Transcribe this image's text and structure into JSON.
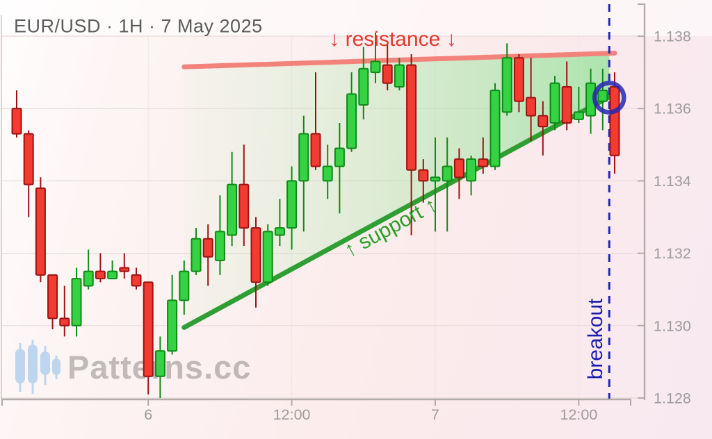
{
  "header": {
    "title": "EUR/USD · 1H · 7 May 2025"
  },
  "watermark": {
    "text": "Patterns.cc"
  },
  "annotations": {
    "resistance_label": "↓ resistance ↓",
    "support_label": "↑ support ↑",
    "breakout_label": "breakout"
  },
  "colors": {
    "up_fill": "#35d244",
    "up_stroke": "#0e8a16",
    "down_fill": "#f23b31",
    "down_stroke": "#9e1212",
    "support": "#2f9e33",
    "resistance": "#f3837a",
    "breakout": "#2626b2",
    "wedge_start": "rgba(190,240,190,0.10)",
    "wedge_end": "rgba(125,224,135,0.62)",
    "grid": "#e8d9d9",
    "axis": "#b3aaaa",
    "axis_text": "#9f9b9b",
    "logo": "#b7d2ef"
  },
  "chart_data": {
    "type": "candlestick",
    "symbol": "EUR/USD",
    "timeframe": "1H",
    "date": "7 May 2025",
    "y_axis": {
      "labels": [
        "1.138",
        "1.136",
        "1.134",
        "1.132",
        "1.130",
        "1.128"
      ],
      "min": 1.128,
      "max": 1.138,
      "grid": true,
      "side": "right"
    },
    "x_axis": {
      "ticks": [
        {
          "label": "6",
          "index": 11
        },
        {
          "label": "12:00",
          "index": 23
        },
        {
          "label": "7",
          "index": 35
        },
        {
          "label": "12:00",
          "index": 47
        }
      ]
    },
    "candles": [
      {
        "o": 1.136,
        "h": 1.1365,
        "l": 1.1352,
        "c": 1.1353
      },
      {
        "o": 1.1353,
        "h": 1.1354,
        "l": 1.133,
        "c": 1.1339
      },
      {
        "o": 1.1338,
        "h": 1.1341,
        "l": 1.1312,
        "c": 1.1314
      },
      {
        "o": 1.1314,
        "h": 1.1314,
        "l": 1.1299,
        "c": 1.1302
      },
      {
        "o": 1.1302,
        "h": 1.1311,
        "l": 1.1297,
        "c": 1.13
      },
      {
        "o": 1.13,
        "h": 1.1316,
        "l": 1.1297,
        "c": 1.1313
      },
      {
        "o": 1.1311,
        "h": 1.1321,
        "l": 1.131,
        "c": 1.1315
      },
      {
        "o": 1.1315,
        "h": 1.132,
        "l": 1.1312,
        "c": 1.1313
      },
      {
        "o": 1.1313,
        "h": 1.1318,
        "l": 1.1313,
        "c": 1.1315
      },
      {
        "o": 1.1316,
        "h": 1.132,
        "l": 1.1313,
        "c": 1.1315
      },
      {
        "o": 1.1314,
        "h": 1.1316,
        "l": 1.131,
        "c": 1.1311
      },
      {
        "o": 1.1312,
        "h": 1.1312,
        "l": 1.1281,
        "c": 1.1286
      },
      {
        "o": 1.1286,
        "h": 1.1297,
        "l": 1.128,
        "c": 1.1293
      },
      {
        "o": 1.1293,
        "h": 1.1314,
        "l": 1.1292,
        "c": 1.1307
      },
      {
        "o": 1.1307,
        "h": 1.1318,
        "l": 1.1303,
        "c": 1.1315
      },
      {
        "o": 1.1315,
        "h": 1.1327,
        "l": 1.1314,
        "c": 1.1324
      },
      {
        "o": 1.1324,
        "h": 1.1328,
        "l": 1.1311,
        "c": 1.1319
      },
      {
        "o": 1.1318,
        "h": 1.1336,
        "l": 1.1314,
        "c": 1.1326
      },
      {
        "o": 1.1325,
        "h": 1.1348,
        "l": 1.1322,
        "c": 1.1339
      },
      {
        "o": 1.1339,
        "h": 1.135,
        "l": 1.1322,
        "c": 1.1327
      },
      {
        "o": 1.1327,
        "h": 1.133,
        "l": 1.1305,
        "c": 1.1312
      },
      {
        "o": 1.1312,
        "h": 1.1328,
        "l": 1.1311,
        "c": 1.1326
      },
      {
        "o": 1.1325,
        "h": 1.1335,
        "l": 1.1322,
        "c": 1.1327
      },
      {
        "o": 1.1327,
        "h": 1.1344,
        "l": 1.1321,
        "c": 1.134
      },
      {
        "o": 1.134,
        "h": 1.1358,
        "l": 1.1326,
        "c": 1.1353
      },
      {
        "o": 1.1353,
        "h": 1.137,
        "l": 1.1343,
        "c": 1.1344
      },
      {
        "o": 1.134,
        "h": 1.135,
        "l": 1.1335,
        "c": 1.1344
      },
      {
        "o": 1.1344,
        "h": 1.1356,
        "l": 1.1331,
        "c": 1.1349
      },
      {
        "o": 1.1349,
        "h": 1.137,
        "l": 1.1348,
        "c": 1.1364
      },
      {
        "o": 1.1361,
        "h": 1.1377,
        "l": 1.1357,
        "c": 1.1371
      },
      {
        "o": 1.137,
        "h": 1.1381,
        "l": 1.1367,
        "c": 1.1373
      },
      {
        "o": 1.1372,
        "h": 1.1378,
        "l": 1.1365,
        "c": 1.1367
      },
      {
        "o": 1.1366,
        "h": 1.1374,
        "l": 1.1365,
        "c": 1.1372
      },
      {
        "o": 1.1372,
        "h": 1.1375,
        "l": 1.1325,
        "c": 1.1343
      },
      {
        "o": 1.1343,
        "h": 1.1346,
        "l": 1.1334,
        "c": 1.134
      },
      {
        "o": 1.134,
        "h": 1.1352,
        "l": 1.1326,
        "c": 1.1341
      },
      {
        "o": 1.134,
        "h": 1.1352,
        "l": 1.1326,
        "c": 1.1344
      },
      {
        "o": 1.1346,
        "h": 1.1349,
        "l": 1.1335,
        "c": 1.1341
      },
      {
        "o": 1.134,
        "h": 1.1347,
        "l": 1.1336,
        "c": 1.1346
      },
      {
        "o": 1.1346,
        "h": 1.1352,
        "l": 1.1342,
        "c": 1.1344
      },
      {
        "o": 1.1344,
        "h": 1.1367,
        "l": 1.1343,
        "c": 1.1365
      },
      {
        "o": 1.1359,
        "h": 1.1378,
        "l": 1.1358,
        "c": 1.1374
      },
      {
        "o": 1.1374,
        "h": 1.1375,
        "l": 1.1359,
        "c": 1.1362
      },
      {
        "o": 1.1363,
        "h": 1.1374,
        "l": 1.1351,
        "c": 1.1358
      },
      {
        "o": 1.1358,
        "h": 1.1362,
        "l": 1.1347,
        "c": 1.1355
      },
      {
        "o": 1.1356,
        "h": 1.1369,
        "l": 1.1354,
        "c": 1.1367
      },
      {
        "o": 1.1366,
        "h": 1.1373,
        "l": 1.1354,
        "c": 1.1356
      },
      {
        "o": 1.1357,
        "h": 1.1366,
        "l": 1.1356,
        "c": 1.1359
      },
      {
        "o": 1.1358,
        "h": 1.1371,
        "l": 1.1353,
        "c": 1.1367
      },
      {
        "o": 1.1362,
        "h": 1.1371,
        "l": 1.1354,
        "c": 1.1365
      },
      {
        "o": 1.1366,
        "h": 1.137,
        "l": 1.1342,
        "c": 1.1347
      }
    ],
    "pattern": {
      "resistance": {
        "from": {
          "index": 14,
          "price": 1.13715
        },
        "to": {
          "index": 50,
          "price": 1.13753
        }
      },
      "support": {
        "from": {
          "index": 14,
          "price": 1.12995
        },
        "to": {
          "index": 49.55,
          "price": 1.13632
        }
      },
      "breakout_index": 49.55,
      "circle": {
        "index": 49.55,
        "price": 1.1363
      }
    }
  }
}
